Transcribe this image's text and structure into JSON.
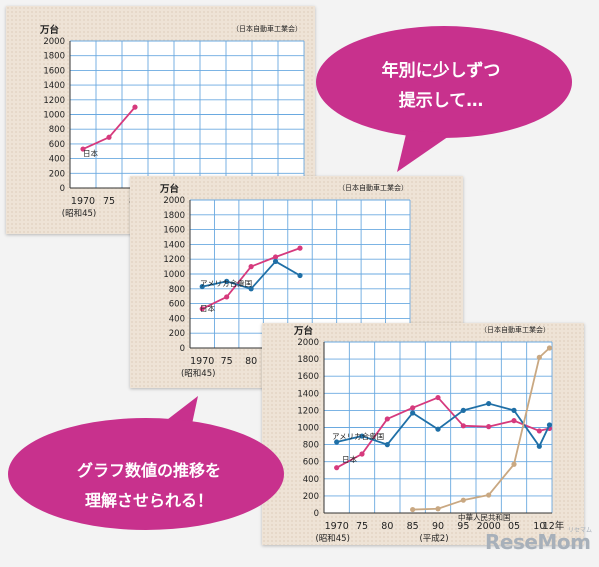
{
  "chart_data": [
    {
      "type": "line",
      "title": "",
      "source": "（日本自動車工業会）",
      "unit_label": "万台",
      "y_ticks": [
        "2000",
        "1800",
        "1600",
        "1400",
        "1200",
        "1000",
        "800",
        "600",
        "400",
        "200",
        "0"
      ],
      "ylim": [
        0,
        2000
      ],
      "x_labels": [
        "1970",
        "75",
        "80"
      ],
      "x_sub_label": "(昭和45)",
      "grid": true,
      "series": [
        {
          "name": "日本",
          "color": "#d63a7d",
          "x": [
            1970,
            1975,
            1980
          ],
          "y": [
            530,
            690,
            1100
          ]
        }
      ]
    },
    {
      "type": "line",
      "title": "",
      "source": "（日本自動車工業会）",
      "unit_label": "万台",
      "y_ticks": [
        "2000",
        "1800",
        "1600",
        "1400",
        "1200",
        "1000",
        "800",
        "600",
        "400",
        "200",
        "0"
      ],
      "ylim": [
        0,
        2000
      ],
      "x_labels": [
        "1970",
        "75",
        "80"
      ],
      "x_sub_label": "(昭和45)",
      "grid": true,
      "series": [
        {
          "name": "日本",
          "color": "#d63a7d",
          "x": [
            1970,
            1975,
            1980,
            1985,
            1990
          ],
          "y": [
            530,
            690,
            1100,
            1230,
            1350
          ]
        },
        {
          "name": "アメリカ合衆国",
          "color": "#1f6fa6",
          "x": [
            1970,
            1975,
            1980,
            1985,
            1990
          ],
          "y": [
            830,
            900,
            800,
            1170,
            980
          ]
        }
      ]
    },
    {
      "type": "line",
      "title": "",
      "source": "（日本自動車工業会）",
      "unit_label": "万台",
      "y_ticks": [
        "2000",
        "1800",
        "1600",
        "1400",
        "1200",
        "1000",
        "800",
        "600",
        "400",
        "200",
        "0"
      ],
      "ylim": [
        0,
        2000
      ],
      "x_labels": [
        "1970",
        "75",
        "80",
        "85",
        "90",
        "95",
        "2000",
        "05",
        "10",
        "12年"
      ],
      "x_sub_labels": [
        "(昭和45)",
        "(平成2)"
      ],
      "grid": true,
      "series": [
        {
          "name": "日本",
          "color": "#d63a7d",
          "x": [
            1970,
            1975,
            1980,
            1985,
            1990,
            1995,
            2000,
            2005,
            2010,
            2012
          ],
          "y": [
            530,
            690,
            1100,
            1230,
            1350,
            1020,
            1010,
            1080,
            960,
            990
          ]
        },
        {
          "name": "アメリカ合衆国",
          "color": "#1f6fa6",
          "x": [
            1970,
            1975,
            1980,
            1985,
            1990,
            1995,
            2000,
            2005,
            2010,
            2012
          ],
          "y": [
            830,
            900,
            800,
            1170,
            980,
            1200,
            1280,
            1200,
            780,
            1030
          ]
        },
        {
          "name": "中華人民共和国",
          "color": "#c9a882",
          "x": [
            1985,
            1990,
            1995,
            2000,
            2005,
            2010,
            2012
          ],
          "y": [
            40,
            50,
            150,
            210,
            570,
            1820,
            1930
          ]
        }
      ]
    }
  ],
  "bubbles": {
    "top": {
      "lines": [
        "年別に少しずつ",
        "提示して…"
      ],
      "color": "#c8318d"
    },
    "bottom": {
      "lines": [
        "グラフ数値の推移を",
        "理解させられる！"
      ],
      "color": "#c8318d"
    }
  },
  "brand": {
    "name": "ReseMom",
    "sub": "リセマム",
    "color": "#a7b0ba"
  }
}
